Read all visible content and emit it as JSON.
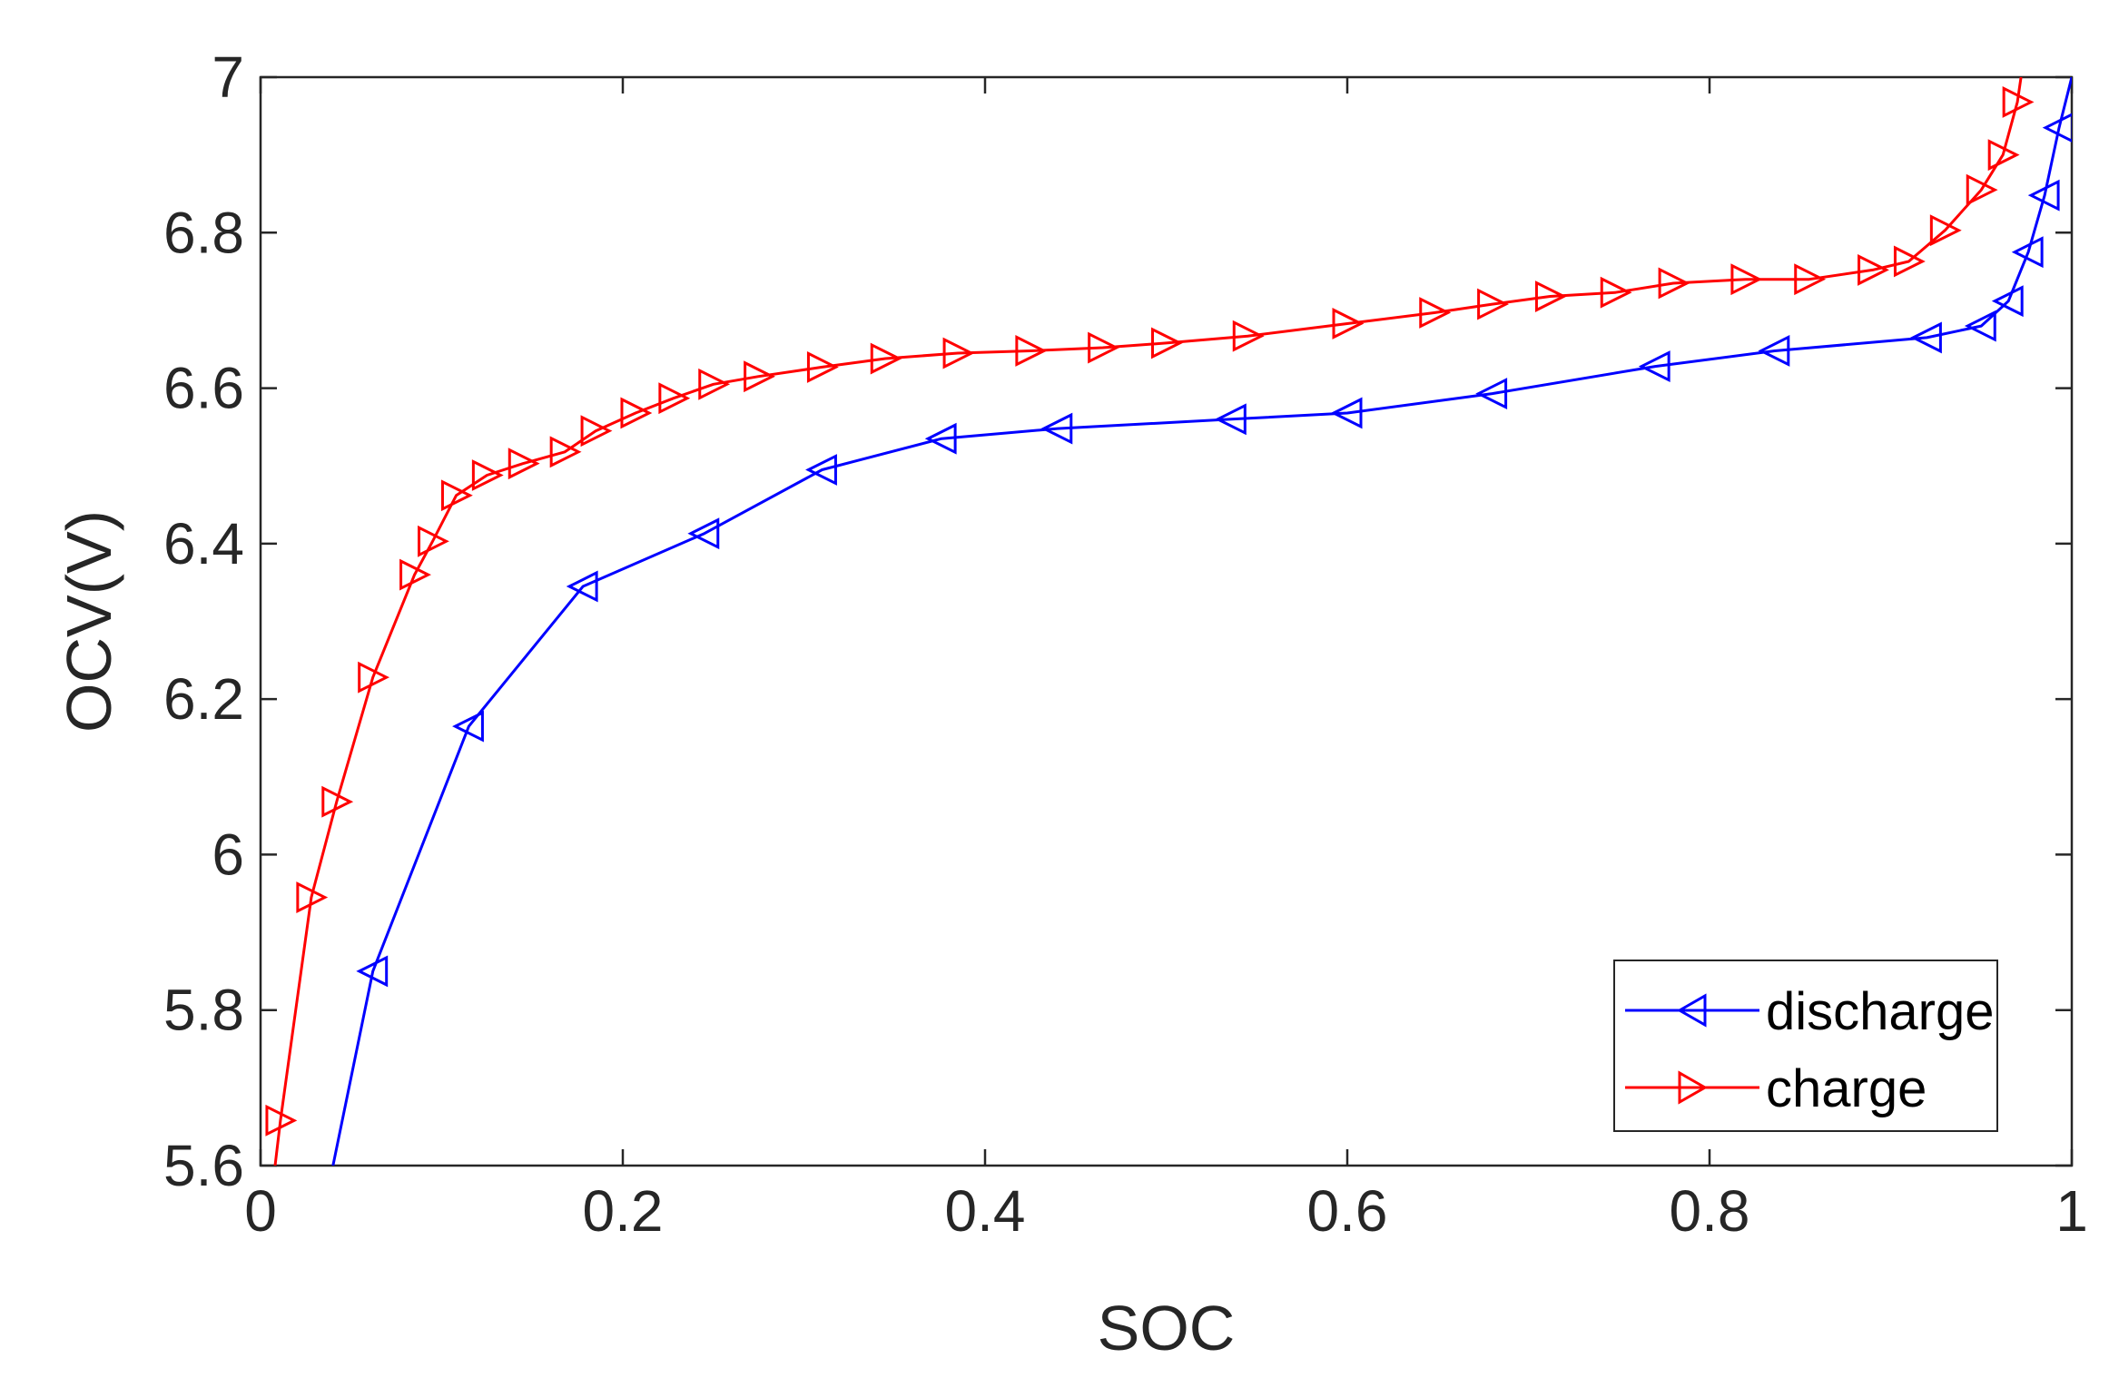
{
  "chart_data": {
    "type": "line",
    "title": "",
    "xlabel": "SOC",
    "ylabel": "OCV(V)",
    "xlim": [
      0,
      1
    ],
    "ylim": [
      5.6,
      7
    ],
    "xticks": [
      0,
      0.2,
      0.4,
      0.6,
      0.8,
      1
    ],
    "xtick_labels": [
      "0",
      "0.2",
      "0.4",
      "0.6",
      "0.8",
      "1"
    ],
    "yticks": [
      5.6,
      5.8,
      6,
      6.2,
      6.4,
      6.6,
      6.8,
      7
    ],
    "ytick_labels": [
      "5.6",
      "5.8",
      "6",
      "6.2",
      "6.4",
      "6.6",
      "6.8",
      "7"
    ],
    "grid": false,
    "legend_position": "bottom-right",
    "series": [
      {
        "name": "discharge",
        "color": "#0000ff",
        "marker": "triangle-left",
        "x": [
          0.04,
          0.062,
          0.115,
          0.178,
          0.245,
          0.31,
          0.376,
          0.44,
          0.536,
          0.6,
          0.68,
          0.77,
          0.836,
          0.92,
          0.95,
          0.965,
          0.976,
          0.985,
          0.993,
          1.0
        ],
        "y": [
          5.6,
          5.85,
          6.165,
          6.345,
          6.413,
          6.495,
          6.535,
          6.548,
          6.56,
          6.568,
          6.593,
          6.628,
          6.648,
          6.665,
          6.68,
          6.712,
          6.775,
          6.848,
          6.935,
          7.0
        ]
      },
      {
        "name": "charge",
        "color": "#ff0000",
        "marker": "triangle-right",
        "x": [
          0.008,
          0.011,
          0.028,
          0.042,
          0.062,
          0.085,
          0.095,
          0.108,
          0.125,
          0.145,
          0.168,
          0.185,
          0.207,
          0.228,
          0.25,
          0.275,
          0.31,
          0.345,
          0.385,
          0.425,
          0.465,
          0.5,
          0.545,
          0.6,
          0.648,
          0.68,
          0.712,
          0.748,
          0.78,
          0.82,
          0.855,
          0.89,
          0.91,
          0.93,
          0.95,
          0.962,
          0.97,
          0.972
        ],
        "y": [
          5.6,
          5.658,
          5.945,
          6.068,
          6.228,
          6.36,
          6.403,
          6.462,
          6.488,
          6.503,
          6.518,
          6.545,
          6.568,
          6.587,
          6.605,
          6.615,
          6.627,
          6.638,
          6.645,
          6.648,
          6.652,
          6.658,
          6.667,
          6.683,
          6.697,
          6.708,
          6.718,
          6.723,
          6.735,
          6.74,
          6.74,
          6.752,
          6.763,
          6.803,
          6.855,
          6.9,
          6.968,
          7.0
        ]
      }
    ]
  }
}
